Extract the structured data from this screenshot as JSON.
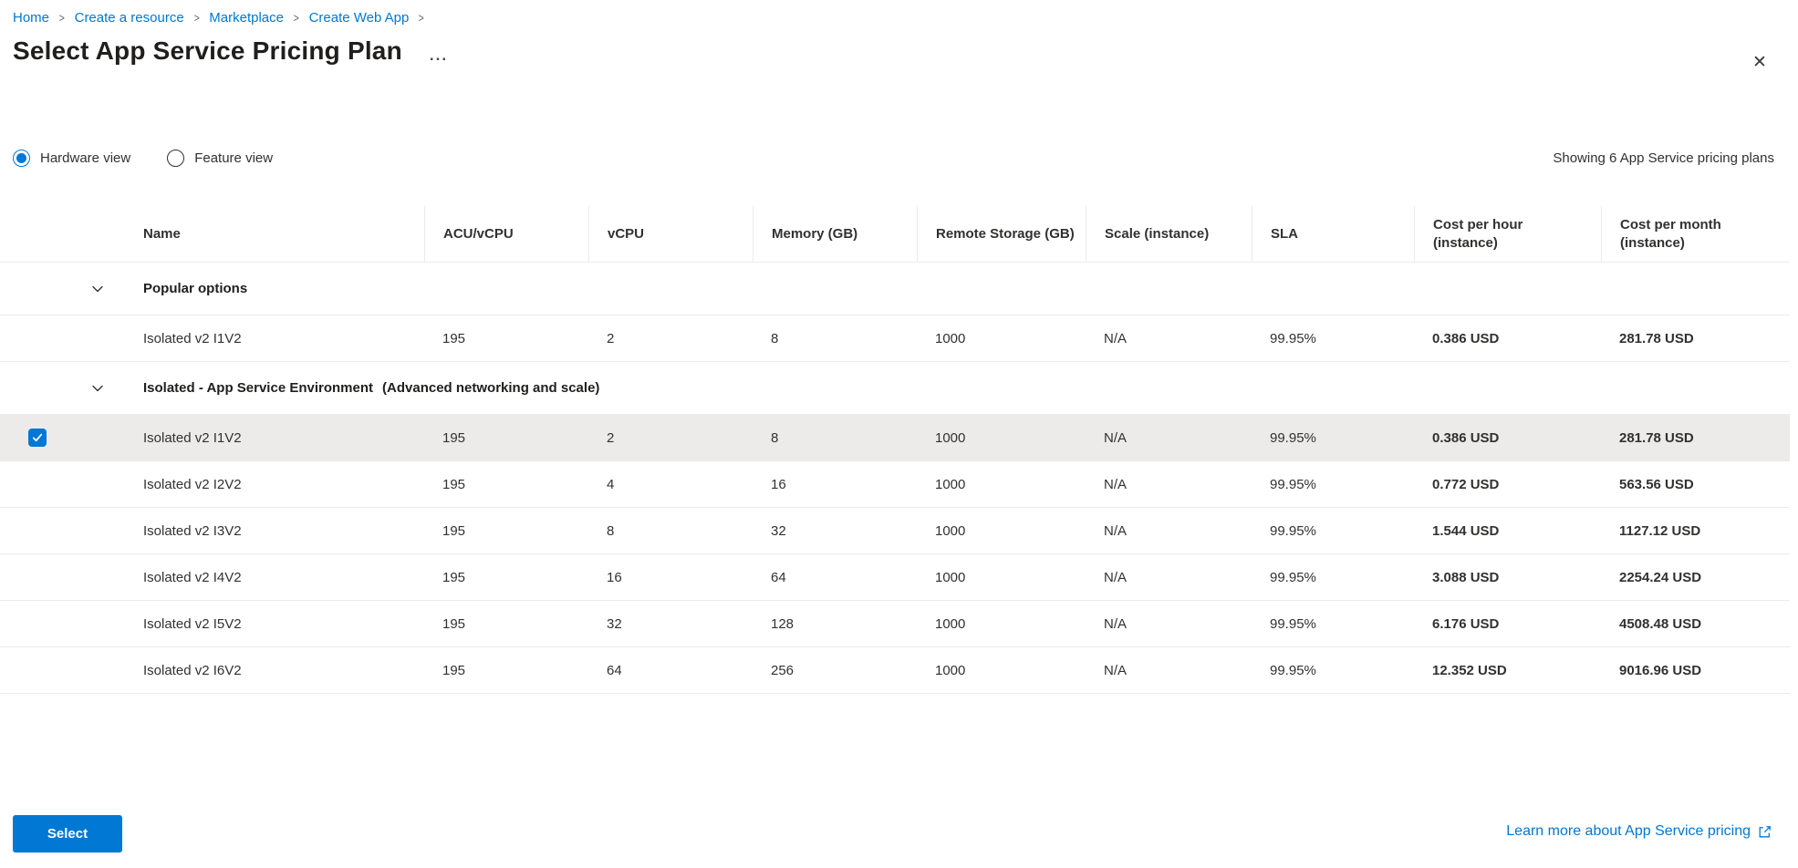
{
  "breadcrumb": {
    "items": [
      {
        "label": "Home"
      },
      {
        "label": "Create a resource"
      },
      {
        "label": "Marketplace"
      },
      {
        "label": "Create Web App"
      }
    ],
    "separator": ">"
  },
  "header": {
    "title": "Select App Service Pricing Plan",
    "more_glyph": "...",
    "close_glyph": "✕"
  },
  "view_toggle": {
    "options": [
      {
        "label": "Hardware view",
        "selected": true
      },
      {
        "label": "Feature view",
        "selected": false
      }
    ]
  },
  "summary": "Showing 6 App Service pricing plans",
  "table": {
    "columns": [
      {
        "key": "name",
        "label": "Name"
      },
      {
        "key": "acu",
        "label": "ACU/vCPU"
      },
      {
        "key": "vcpu",
        "label": "vCPU"
      },
      {
        "key": "memory",
        "label": "Memory (GB)"
      },
      {
        "key": "storage",
        "label": "Remote Storage (GB)"
      },
      {
        "key": "scale",
        "label": "Scale (instance)"
      },
      {
        "key": "sla",
        "label": "SLA"
      },
      {
        "key": "cost_hour",
        "label": "Cost per hour (instance)"
      },
      {
        "key": "cost_month",
        "label": "Cost per month (instance)"
      }
    ],
    "groups": [
      {
        "label": "Popular options",
        "suffix": "",
        "rows": [
          {
            "name": "Isolated v2 I1V2",
            "acu": "195",
            "vcpu": "2",
            "memory": "8",
            "storage": "1000",
            "scale": "N/A",
            "sla": "99.95%",
            "cost_hour": "0.386 USD",
            "cost_month": "281.78 USD",
            "selected": false
          }
        ]
      },
      {
        "label": "Isolated - App Service Environment",
        "suffix": "(Advanced networking and scale)",
        "rows": [
          {
            "name": "Isolated v2 I1V2",
            "acu": "195",
            "vcpu": "2",
            "memory": "8",
            "storage": "1000",
            "scale": "N/A",
            "sla": "99.95%",
            "cost_hour": "0.386 USD",
            "cost_month": "281.78 USD",
            "selected": true
          },
          {
            "name": "Isolated v2 I2V2",
            "acu": "195",
            "vcpu": "4",
            "memory": "16",
            "storage": "1000",
            "scale": "N/A",
            "sla": "99.95%",
            "cost_hour": "0.772 USD",
            "cost_month": "563.56 USD",
            "selected": false
          },
          {
            "name": "Isolated v2 I3V2",
            "acu": "195",
            "vcpu": "8",
            "memory": "32",
            "storage": "1000",
            "scale": "N/A",
            "sla": "99.95%",
            "cost_hour": "1.544 USD",
            "cost_month": "1127.12 USD",
            "selected": false
          },
          {
            "name": "Isolated v2 I4V2",
            "acu": "195",
            "vcpu": "16",
            "memory": "64",
            "storage": "1000",
            "scale": "N/A",
            "sla": "99.95%",
            "cost_hour": "3.088 USD",
            "cost_month": "2254.24 USD",
            "selected": false
          },
          {
            "name": "Isolated v2 I5V2",
            "acu": "195",
            "vcpu": "32",
            "memory": "128",
            "storage": "1000",
            "scale": "N/A",
            "sla": "99.95%",
            "cost_hour": "6.176 USD",
            "cost_month": "4508.48 USD",
            "selected": false
          },
          {
            "name": "Isolated v2 I6V2",
            "acu": "195",
            "vcpu": "64",
            "memory": "256",
            "storage": "1000",
            "scale": "N/A",
            "sla": "99.95%",
            "cost_hour": "12.352 USD",
            "cost_month": "9016.96 USD",
            "selected": false
          }
        ]
      }
    ]
  },
  "footer": {
    "select_label": "Select",
    "learn_more_label": "Learn more about App Service pricing"
  },
  "colors": {
    "accent": "#0078d4",
    "link": "#0078d4",
    "text": "#323130",
    "border": "#edebe9",
    "selected_row_bg": "#edebe9"
  }
}
